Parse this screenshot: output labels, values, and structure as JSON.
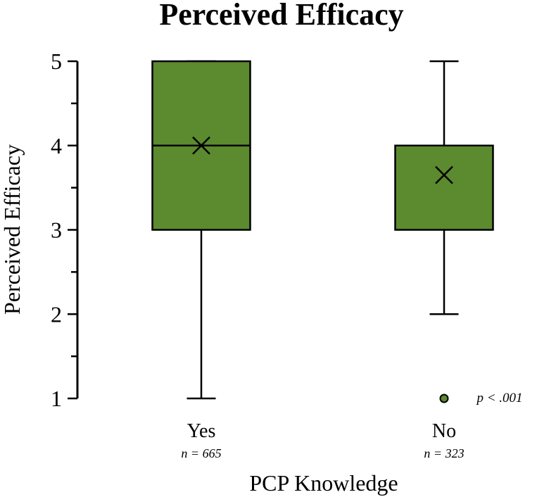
{
  "chart_data": {
    "type": "box",
    "title": "Perceived Efficacy",
    "xlabel": "PCP Knowledge",
    "ylabel": "Perceived Efficacy",
    "ylim": [
      1,
      5
    ],
    "yticks": [
      1,
      2,
      3,
      4,
      5
    ],
    "minor_tick_step": 0.5,
    "grid": false,
    "box_color": "#5b8a2f",
    "categories": [
      {
        "label": "Yes",
        "n_label": "n = 665",
        "min": 1,
        "q1": 3,
        "median": 4,
        "q3": 5,
        "max": 5,
        "mean": 4.0,
        "outliers": []
      },
      {
        "label": "No",
        "n_label": "n = 323",
        "min": 2,
        "q1": 3,
        "median": 4,
        "q3": 4,
        "max": 5,
        "mean": 3.65,
        "outliers": [
          1
        ]
      }
    ],
    "annotation": "p < .001"
  }
}
